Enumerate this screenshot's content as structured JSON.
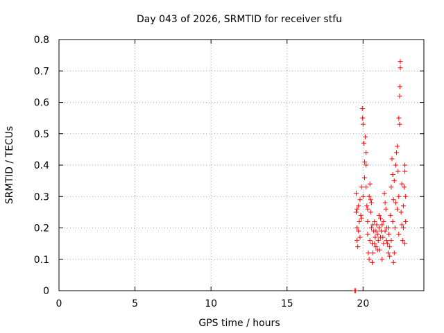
{
  "chart_data": {
    "type": "scatter",
    "title": "Day 043 of 2026, SRMTID for receiver stfu",
    "xlabel": "GPS time / hours",
    "ylabel": "SRMTID / TECUs",
    "xlim": [
      0,
      24
    ],
    "ylim": [
      0,
      0.8
    ],
    "xticks": [
      0,
      5,
      10,
      15,
      20
    ],
    "xtick_labels": [
      "0",
      "5",
      "10",
      "15",
      "20"
    ],
    "yticks": [
      0,
      0.1,
      0.2,
      0.3,
      0.4,
      0.5,
      0.6,
      0.7,
      0.8
    ],
    "ytick_labels": [
      "0",
      "0.1",
      "0.2",
      "0.3",
      "0.4",
      "0.5",
      "0.6",
      "0.7",
      "0.8"
    ],
    "grid": true,
    "marker": "+",
    "color": "#ff0000",
    "series": [
      {
        "name": "SRMTID",
        "points": [
          [
            19.45,
            0.0
          ],
          [
            19.5,
            0.0
          ],
          [
            19.55,
            0.31
          ],
          [
            19.55,
            0.25
          ],
          [
            19.6,
            0.2
          ],
          [
            19.6,
            0.16
          ],
          [
            19.65,
            0.14
          ],
          [
            19.7,
            0.27
          ],
          [
            19.75,
            0.22
          ],
          [
            19.8,
            0.29
          ],
          [
            19.85,
            0.24
          ],
          [
            19.9,
            0.33
          ],
          [
            19.95,
            0.58
          ],
          [
            19.97,
            0.55
          ],
          [
            20.0,
            0.53
          ],
          [
            20.05,
            0.47
          ],
          [
            20.1,
            0.41
          ],
          [
            20.1,
            0.36
          ],
          [
            20.15,
            0.49
          ],
          [
            20.2,
            0.44
          ],
          [
            20.2,
            0.33
          ],
          [
            20.25,
            0.27
          ],
          [
            20.3,
            0.22
          ],
          [
            20.3,
            0.18
          ],
          [
            20.35,
            0.12
          ],
          [
            20.4,
            0.1
          ],
          [
            20.4,
            0.3
          ],
          [
            20.45,
            0.34
          ],
          [
            20.5,
            0.29
          ],
          [
            20.5,
            0.25
          ],
          [
            20.55,
            0.2
          ],
          [
            20.6,
            0.15
          ],
          [
            20.6,
            0.09
          ],
          [
            20.65,
            0.12
          ],
          [
            20.7,
            0.19
          ],
          [
            20.75,
            0.22
          ],
          [
            20.8,
            0.17
          ],
          [
            20.85,
            0.14
          ],
          [
            20.9,
            0.21
          ],
          [
            20.95,
            0.18
          ],
          [
            21.0,
            0.16
          ],
          [
            21.05,
            0.2
          ],
          [
            21.1,
            0.13
          ],
          [
            21.15,
            0.23
          ],
          [
            21.2,
            0.19
          ],
          [
            21.25,
            0.1
          ],
          [
            21.3,
            0.17
          ],
          [
            21.35,
            0.22
          ],
          [
            21.4,
            0.31
          ],
          [
            21.45,
            0.28
          ],
          [
            21.5,
            0.26
          ],
          [
            21.55,
            0.2
          ],
          [
            21.6,
            0.15
          ],
          [
            21.65,
            0.12
          ],
          [
            21.7,
            0.18
          ],
          [
            21.75,
            0.14
          ],
          [
            21.8,
            0.24
          ],
          [
            21.85,
            0.33
          ],
          [
            21.9,
            0.42
          ],
          [
            21.95,
            0.37
          ],
          [
            22.0,
            0.29
          ],
          [
            22.0,
            0.09
          ],
          [
            22.05,
            0.12
          ],
          [
            22.1,
            0.2
          ],
          [
            22.15,
            0.28
          ],
          [
            22.2,
            0.44
          ],
          [
            22.25,
            0.46
          ],
          [
            22.3,
            0.38
          ],
          [
            22.35,
            0.3
          ],
          [
            22.35,
            0.55
          ],
          [
            22.4,
            0.53
          ],
          [
            22.4,
            0.62
          ],
          [
            22.42,
            0.65
          ],
          [
            22.45,
            0.71
          ],
          [
            22.45,
            0.73
          ],
          [
            22.5,
            0.25
          ],
          [
            22.55,
            0.21
          ],
          [
            22.6,
            0.16
          ],
          [
            22.65,
            0.2
          ],
          [
            22.7,
            0.33
          ],
          [
            22.75,
            0.38
          ],
          [
            22.75,
            0.4
          ],
          [
            22.8,
            0.3
          ],
          [
            22.8,
            0.22
          ],
          [
            19.6,
            0.26
          ],
          [
            19.7,
            0.19
          ],
          [
            19.8,
            0.17
          ],
          [
            19.9,
            0.23
          ],
          [
            20.0,
            0.3
          ],
          [
            20.2,
            0.4
          ],
          [
            20.3,
            0.26
          ],
          [
            20.45,
            0.16
          ],
          [
            20.55,
            0.28
          ],
          [
            20.65,
            0.21
          ],
          [
            20.75,
            0.15
          ],
          [
            20.85,
            0.19
          ],
          [
            20.95,
            0.13
          ],
          [
            21.05,
            0.24
          ],
          [
            21.15,
            0.17
          ],
          [
            21.25,
            0.21
          ],
          [
            21.35,
            0.15
          ],
          [
            21.45,
            0.19
          ],
          [
            21.55,
            0.16
          ],
          [
            21.65,
            0.2
          ],
          [
            21.75,
            0.11
          ],
          [
            21.85,
            0.16
          ],
          [
            21.95,
            0.22
          ],
          [
            22.05,
            0.35
          ],
          [
            22.15,
            0.4
          ],
          [
            22.25,
            0.26
          ],
          [
            22.35,
            0.18
          ],
          [
            22.55,
            0.34
          ],
          [
            22.65,
            0.27
          ],
          [
            22.75,
            0.15
          ]
        ]
      }
    ]
  }
}
